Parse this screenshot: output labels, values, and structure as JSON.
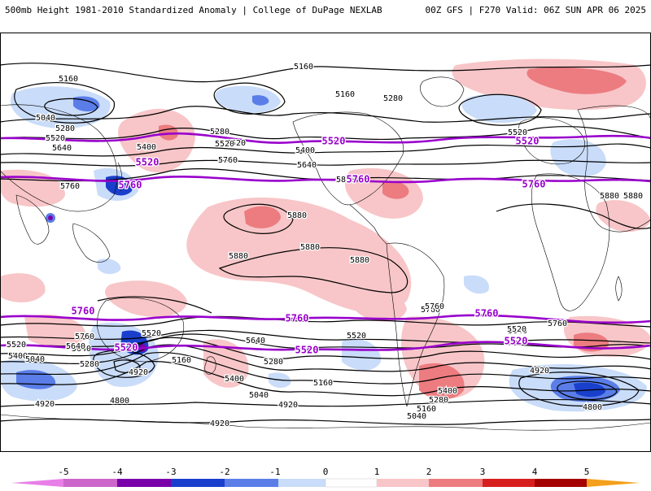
{
  "header": {
    "title": "500mb Height 1981-2010 Standardized Anomaly | College of DuPage NEXLAB",
    "run_info": "00Z GFS | F270 Valid: 06Z SUN APR 06 2025"
  },
  "colors": {
    "thickness_line": "#9900cc",
    "height_line": "#000000",
    "coastline": "#000000",
    "anom_neg5": "#cc66cc",
    "anom_neg4": "#7a00aa",
    "anom_neg3": "#1a3fcc",
    "anom_neg2": "#5a7de8",
    "anom_neg1": "#c9dcf9",
    "anom_pos1": "#f8c6c8",
    "anom_pos2": "#ec7c80",
    "anom_pos3": "#d81f1f",
    "anom_pos4": "#a50000",
    "anom_pos5": "#f4a01c"
  },
  "contour_labels": {
    "height": [
      "5160",
      "5040",
      "5280",
      "5520",
      "5640",
      "5760",
      "5880",
      "5400",
      "4920",
      "4800"
    ],
    "thickness": [
      "5520",
      "5760"
    ]
  },
  "colorbar": {
    "ticks": [
      "-5",
      "-4",
      "-3",
      "-2",
      "-1",
      "0",
      "1",
      "2",
      "3",
      "4",
      "5"
    ]
  },
  "map_labels": [
    {
      "text": "5160",
      "kind": "height"
    },
    {
      "text": "5160",
      "kind": "height"
    },
    {
      "text": "5160",
      "kind": "height"
    },
    {
      "text": "5280",
      "kind": "height"
    },
    {
      "text": "5520",
      "kind": "height"
    },
    {
      "text": "5040",
      "kind": "height"
    },
    {
      "text": "5280",
      "kind": "height"
    },
    {
      "text": "5520",
      "kind": "height"
    },
    {
      "text": "5640",
      "kind": "height"
    },
    {
      "text": "5400",
      "kind": "height"
    },
    {
      "text": "5280",
      "kind": "height"
    },
    {
      "text": "5520",
      "kind": "height"
    },
    {
      "text": "5400",
      "kind": "height"
    },
    {
      "text": "5640",
      "kind": "height"
    },
    {
      "text": "5760",
      "kind": "height"
    },
    {
      "text": "5760",
      "kind": "height"
    },
    {
      "text": "5880",
      "kind": "height"
    },
    {
      "text": "5880",
      "kind": "height"
    },
    {
      "text": "5880",
      "kind": "height"
    },
    {
      "text": "5880",
      "kind": "height"
    },
    {
      "text": "5880",
      "kind": "height"
    },
    {
      "text": "5880",
      "kind": "height"
    },
    {
      "text": "5760",
      "kind": "height"
    },
    {
      "text": "5640",
      "kind": "height"
    },
    {
      "text": "5520",
      "kind": "height"
    },
    {
      "text": "5400",
      "kind": "height"
    },
    {
      "text": "5160",
      "kind": "height"
    },
    {
      "text": "5040",
      "kind": "height"
    },
    {
      "text": "4920",
      "kind": "height"
    },
    {
      "text": "5280",
      "kind": "height"
    },
    {
      "text": "4920",
      "kind": "height"
    },
    {
      "text": "4800",
      "kind": "height"
    },
    {
      "text": "5520",
      "kind": "height"
    },
    {
      "text": "5640",
      "kind": "height"
    },
    {
      "text": "5760",
      "kind": "height"
    },
    {
      "text": "5640",
      "kind": "height"
    },
    {
      "text": "5520",
      "kind": "height"
    },
    {
      "text": "5400",
      "kind": "height"
    },
    {
      "text": "5280",
      "kind": "height"
    },
    {
      "text": "5040",
      "kind": "height"
    },
    {
      "text": "4920",
      "kind": "height"
    },
    {
      "text": "5160",
      "kind": "height"
    },
    {
      "text": "4920",
      "kind": "height"
    },
    {
      "text": "5760",
      "kind": "height"
    },
    {
      "text": "5640",
      "kind": "height"
    },
    {
      "text": "5400",
      "kind": "height"
    },
    {
      "text": "5280",
      "kind": "height"
    },
    {
      "text": "5160",
      "kind": "height"
    },
    {
      "text": "5040",
      "kind": "height"
    },
    {
      "text": "5760",
      "kind": "height"
    },
    {
      "text": "5520",
      "kind": "height"
    },
    {
      "text": "4920",
      "kind": "height"
    },
    {
      "text": "4800",
      "kind": "height"
    },
    {
      "text": "5520",
      "kind": "height"
    },
    {
      "text": "5880",
      "kind": "height"
    },
    {
      "text": "5520",
      "kind": "thickness"
    },
    {
      "text": "5520",
      "kind": "thickness"
    },
    {
      "text": "5520",
      "kind": "thickness"
    },
    {
      "text": "5760",
      "kind": "thickness"
    },
    {
      "text": "5760",
      "kind": "thickness"
    },
    {
      "text": "5760",
      "kind": "thickness"
    },
    {
      "text": "5760",
      "kind": "thickness"
    },
    {
      "text": "5760",
      "kind": "thickness"
    },
    {
      "text": "5760",
      "kind": "thickness"
    },
    {
      "text": "5520",
      "kind": "thickness"
    },
    {
      "text": "5520",
      "kind": "thickness"
    },
    {
      "text": "5520",
      "kind": "thickness"
    }
  ]
}
